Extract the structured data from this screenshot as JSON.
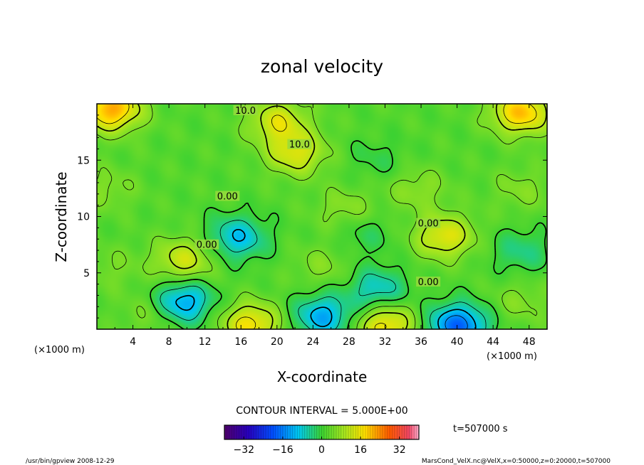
{
  "chart_data": {
    "type": "heatmap",
    "title": "zonal velocity",
    "xlabel": "X-coordinate",
    "ylabel": "Z-coordinate",
    "x_unit": "(×1000 m)",
    "z_unit": "(×1000 m)",
    "xlim": [
      0,
      50
    ],
    "ylim": [
      0,
      20
    ],
    "x_ticks": [
      4,
      8,
      12,
      16,
      20,
      24,
      28,
      32,
      36,
      40,
      44,
      48
    ],
    "x_tick_labels": [
      "4",
      "8",
      "12",
      "16",
      "20",
      "24",
      "28",
      "32",
      "36",
      "40",
      "44",
      "48"
    ],
    "y_ticks": [
      5,
      10,
      15
    ],
    "y_tick_labels": [
      "5",
      "10",
      "15"
    ],
    "contour_interval_text": "CONTOUR INTERVAL = 5.000E+00",
    "colorbar": {
      "min": -40,
      "max": 40,
      "ticks": [
        -32,
        -16,
        0,
        16,
        32
      ],
      "tick_labels": [
        "−32",
        "−16",
        "0",
        "16",
        "32"
      ]
    },
    "contour_labels": [
      {
        "text": "10.0",
        "x": 16.5,
        "z": 19.3
      },
      {
        "text": "10.0",
        "x": 22.5,
        "z": 16.3
      },
      {
        "text": "0.00",
        "x": 14.5,
        "z": 11.7
      },
      {
        "text": "0.00",
        "x": 12.2,
        "z": 7.4
      },
      {
        "text": "0.00",
        "x": 36.8,
        "z": 9.3
      },
      {
        "text": "0.00",
        "x": 36.8,
        "z": 4.1
      }
    ],
    "features": [
      {
        "kind": "max",
        "x": 1.5,
        "z": 19.6,
        "value": 20
      },
      {
        "kind": "max",
        "x": 47,
        "z": 19.3,
        "value": 18
      },
      {
        "kind": "max",
        "x": 20,
        "z": 18.5,
        "value": 12
      },
      {
        "kind": "max",
        "x": 22,
        "z": 15.7,
        "value": 12
      },
      {
        "kind": "max",
        "x": 9.5,
        "z": 6.2,
        "value": 11
      },
      {
        "kind": "max",
        "x": 38.5,
        "z": 8.3,
        "value": 13
      },
      {
        "kind": "max",
        "x": 1,
        "z": 12.5,
        "value": 4
      },
      {
        "kind": "max",
        "x": 35.5,
        "z": 12.5,
        "value": 5
      },
      {
        "kind": "max",
        "x": 47,
        "z": 12.5,
        "value": 4
      },
      {
        "kind": "max",
        "x": 27.5,
        "z": 10.7,
        "value": 5
      },
      {
        "kind": "max",
        "x": 25,
        "z": 5.7,
        "value": 4
      },
      {
        "kind": "max",
        "x": 17,
        "z": 0.5,
        "value": 15
      },
      {
        "kind": "max",
        "x": 32,
        "z": 0.4,
        "value": 15
      },
      {
        "kind": "max",
        "x": 6,
        "z": 1.5,
        "value": 4
      },
      {
        "kind": "max",
        "x": 47,
        "z": 2.5,
        "value": 4
      },
      {
        "kind": "max",
        "x": 1.5,
        "z": 5.5,
        "value": 3
      },
      {
        "kind": "min",
        "x": 15.5,
        "z": 8.2,
        "value": -12
      },
      {
        "kind": "min",
        "x": 9.5,
        "z": 2.5,
        "value": -15
      },
      {
        "kind": "min",
        "x": 25,
        "z": 1.2,
        "value": -14
      },
      {
        "kind": "min",
        "x": 31,
        "z": 3.6,
        "value": -10
      },
      {
        "kind": "min",
        "x": 40,
        "z": 0.4,
        "value": -20
      },
      {
        "kind": "min",
        "x": 47,
        "z": 7,
        "value": -6
      },
      {
        "kind": "min",
        "x": 29.5,
        "z": 8.5,
        "value": -4
      },
      {
        "kind": "min",
        "x": 31,
        "z": 15.2,
        "value": -3
      }
    ],
    "grid": false,
    "colormap": "rainbow"
  },
  "time_label": "t=507000  s",
  "footer": {
    "left": "/usr/bin/gpview   2008-12-29",
    "right": "MarsCond_VelX.nc@VelX,x=0:50000,z=0:20000,t=507000"
  }
}
